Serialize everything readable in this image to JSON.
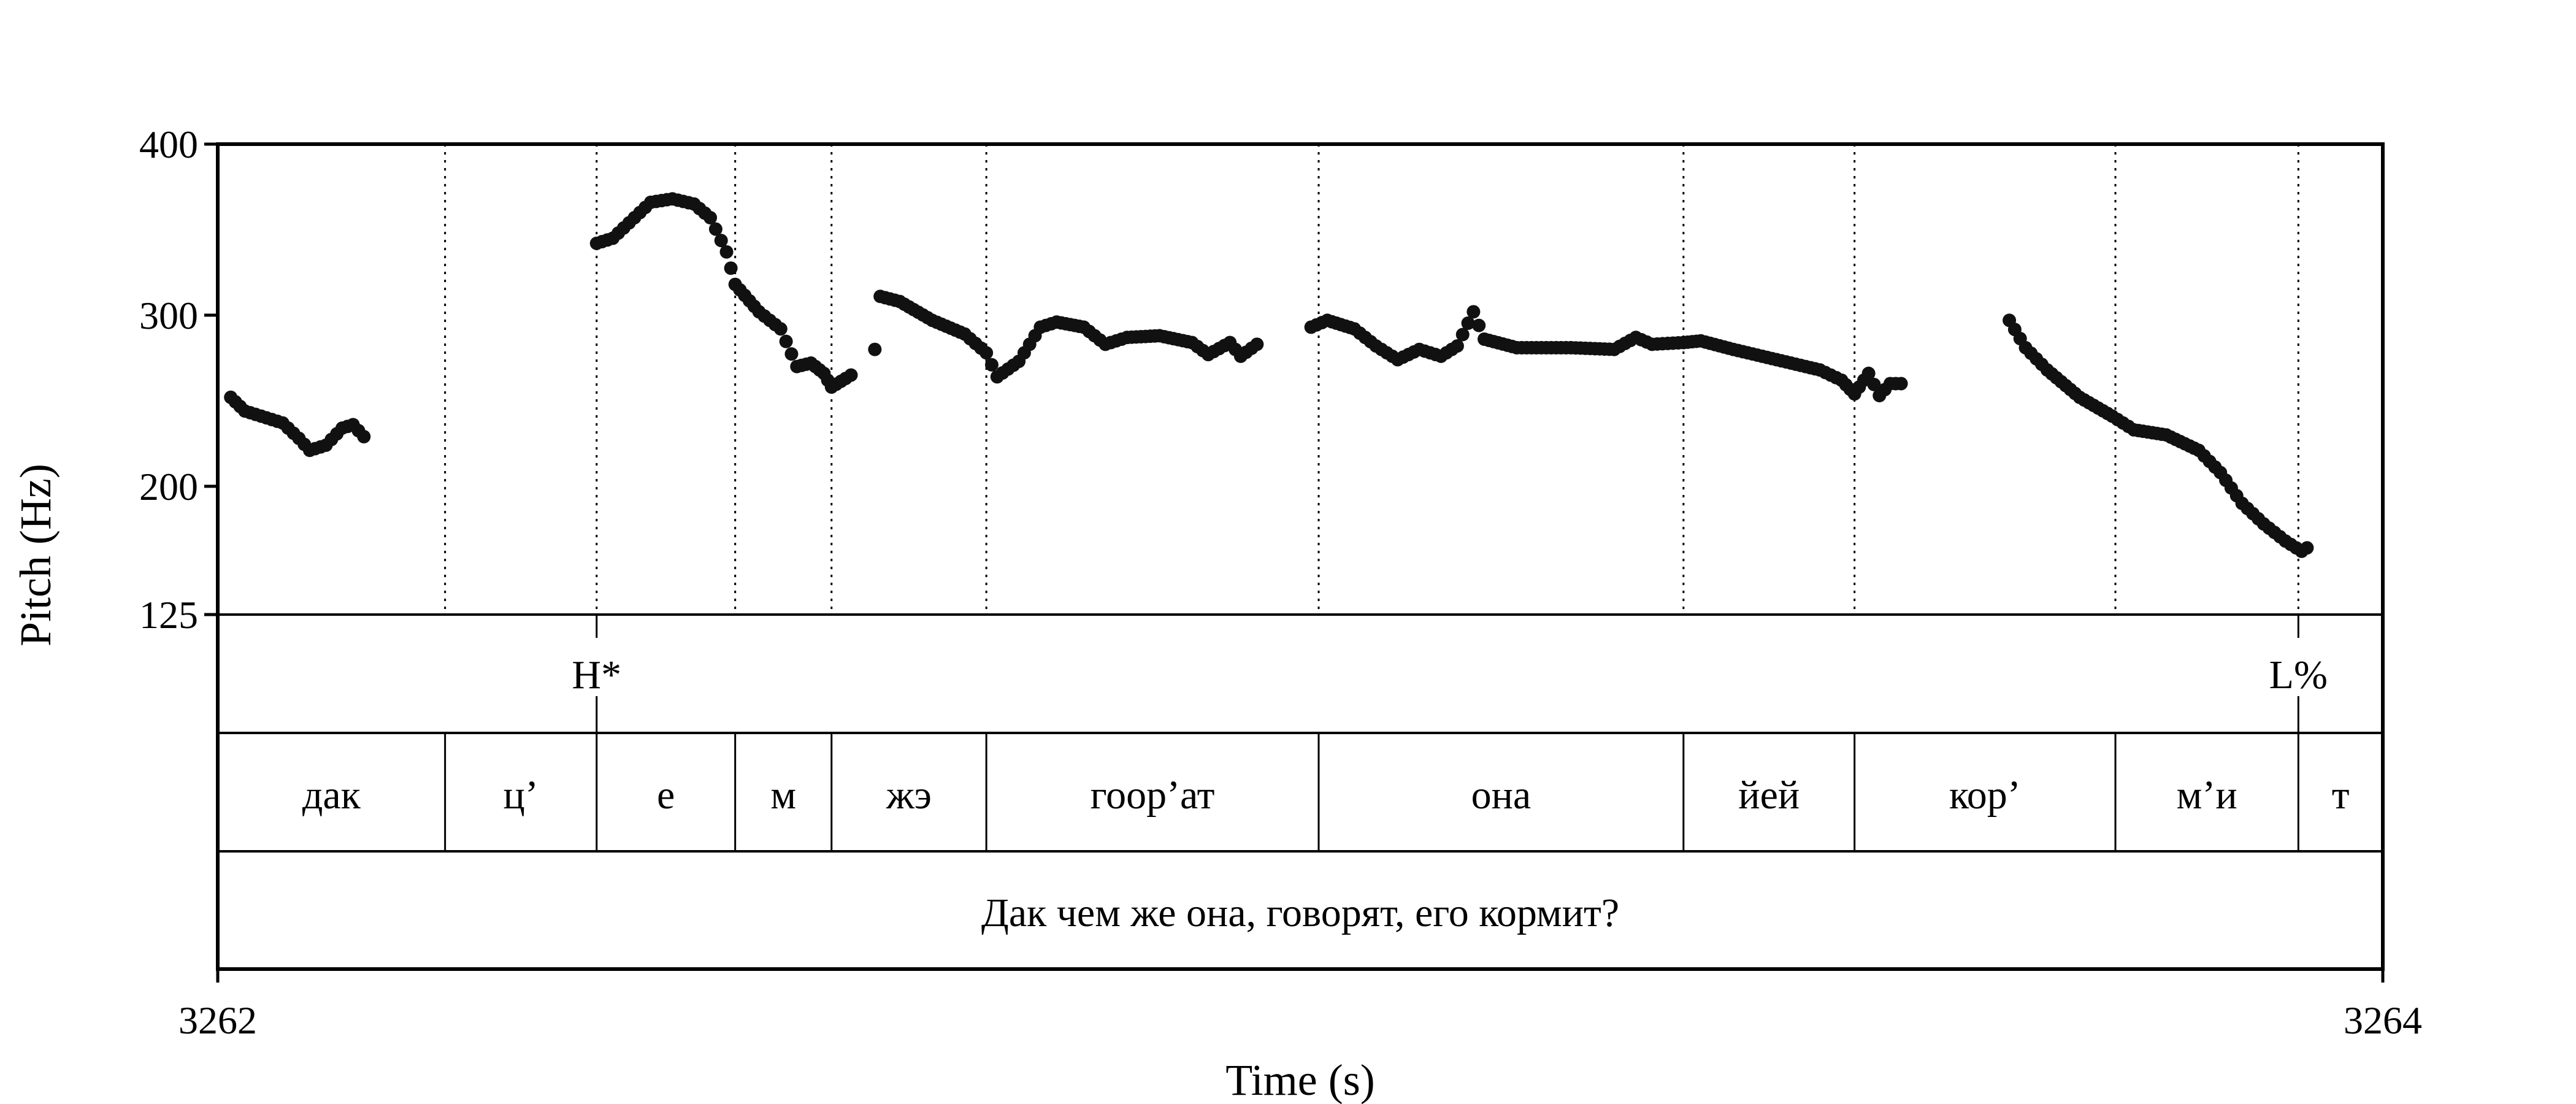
{
  "chart_data": {
    "type": "scatter",
    "ylabel": "Pitch (Hz)",
    "xlabel": "Time (s)",
    "yticks": [
      {
        "value": 125,
        "label": "125"
      },
      {
        "value": 200,
        "label": "200"
      },
      {
        "value": 300,
        "label": "300"
      },
      {
        "value": 400,
        "label": "400"
      }
    ],
    "xticks": [
      {
        "value": 3262,
        "label": "3262"
      },
      {
        "value": 3264,
        "label": "3264"
      }
    ],
    "xlim": [
      3262,
      3264
    ],
    "ylim": [
      125,
      400
    ],
    "grid": false,
    "boundaries": [
      3262.21,
      3262.35,
      3262.478,
      3262.567,
      3262.71,
      3263.017,
      3263.354,
      3263.512,
      3263.753,
      3263.922
    ],
    "tones": [
      {
        "time": 3262.35,
        "label": "H*"
      },
      {
        "time": 3263.922,
        "label": "L%"
      }
    ],
    "syllables": [
      "дак",
      "ц’",
      "е",
      "м",
      "жэ",
      "гоор’ат",
      "она",
      "йей",
      "кор’",
      "м’и",
      "т"
    ],
    "sentence": "Дак чем же она, говорят, его кормит?",
    "series_anchors": [
      [
        [
          3262.012,
          252
        ],
        [
          3262.025,
          244
        ],
        [
          3262.045,
          240
        ],
        [
          3262.06,
          237
        ],
        [
          3262.075,
          228
        ],
        [
          3262.085,
          221
        ],
        [
          3262.1,
          224
        ],
        [
          3262.115,
          234
        ],
        [
          3262.125,
          236
        ],
        [
          3262.135,
          229
        ]
      ],
      [
        [
          3262.35,
          342
        ],
        [
          3262.365,
          345
        ],
        [
          3262.385,
          357
        ],
        [
          3262.4,
          366
        ],
        [
          3262.42,
          368
        ],
        [
          3262.44,
          365
        ],
        [
          3262.455,
          357
        ],
        [
          3262.47,
          337
        ],
        [
          3262.478,
          318
        ],
        [
          3262.5,
          302
        ],
        [
          3262.52,
          292
        ],
        [
          3262.535,
          270
        ],
        [
          3262.548,
          272
        ],
        [
          3262.56,
          266
        ],
        [
          3262.567,
          258
        ],
        [
          3262.58,
          263
        ],
        [
          3262.585,
          265
        ]
      ],
      [
        [
          3262.607,
          280
        ]
      ],
      [
        [
          3262.612,
          311
        ],
        [
          3262.63,
          308
        ],
        [
          3262.66,
          297
        ],
        [
          3262.69,
          289
        ],
        [
          3262.71,
          278
        ],
        [
          3262.72,
          264
        ],
        [
          3262.74,
          273
        ],
        [
          3262.76,
          293
        ],
        [
          3262.775,
          296
        ],
        [
          3262.8,
          293
        ],
        [
          3262.82,
          283
        ],
        [
          3262.84,
          287
        ],
        [
          3262.87,
          288
        ],
        [
          3262.9,
          284
        ],
        [
          3262.915,
          277
        ],
        [
          3262.935,
          284
        ],
        [
          3262.945,
          276
        ],
        [
          3262.96,
          283
        ]
      ],
      [
        [
          3263.01,
          293
        ],
        [
          3263.025,
          297
        ],
        [
          3263.05,
          292
        ],
        [
          3263.07,
          282
        ],
        [
          3263.09,
          274
        ],
        [
          3263.11,
          280
        ],
        [
          3263.13,
          276
        ],
        [
          3263.145,
          282
        ],
        [
          3263.16,
          302
        ],
        [
          3263.17,
          286
        ],
        [
          3263.2,
          281
        ],
        [
          3263.25,
          281
        ],
        [
          3263.29,
          280
        ],
        [
          3263.31,
          287
        ],
        [
          3263.325,
          283
        ],
        [
          3263.354,
          284
        ],
        [
          3263.37,
          285
        ],
        [
          3263.4,
          280
        ],
        [
          3263.44,
          274
        ],
        [
          3263.48,
          268
        ],
        [
          3263.5,
          262
        ],
        [
          3263.512,
          254
        ],
        [
          3263.525,
          266
        ],
        [
          3263.535,
          253
        ],
        [
          3263.545,
          260
        ],
        [
          3263.555,
          260
        ]
      ],
      [
        [
          3263.655,
          297
        ],
        [
          3263.67,
          281
        ],
        [
          3263.69,
          268
        ],
        [
          3263.72,
          252
        ],
        [
          3263.75,
          241
        ],
        [
          3263.77,
          233
        ],
        [
          3263.8,
          230
        ],
        [
          3263.83,
          221
        ],
        [
          3263.85,
          208
        ],
        [
          3263.87,
          190
        ],
        [
          3263.89,
          178
        ],
        [
          3263.91,
          168
        ],
        [
          3263.925,
          162
        ],
        [
          3263.93,
          164
        ]
      ]
    ]
  }
}
